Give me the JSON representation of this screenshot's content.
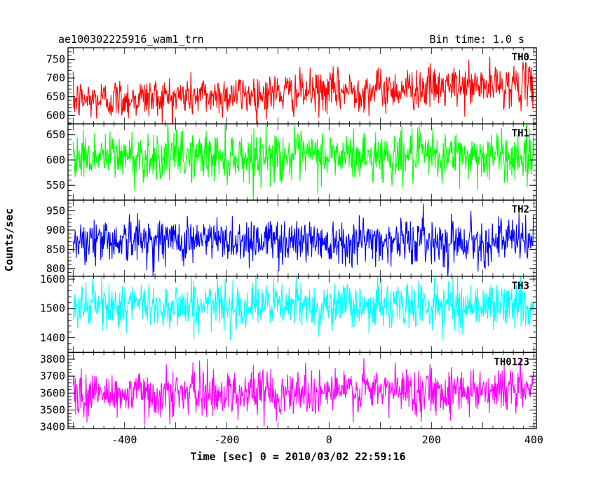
{
  "header": {
    "title": "ae100302225916_wam1_trn",
    "bin_time": "Bin time: 1.0 s"
  },
  "chart_data": {
    "type": "line",
    "xlabel": "Time [sec] 0 = 2010/03/02 22:59:16",
    "ylabel": "Counts/sec",
    "xlim": [
      -510,
      405
    ],
    "x_ticks": [
      -400,
      -200,
      0,
      200,
      400
    ],
    "x_range": [
      -500,
      400
    ],
    "bin_time": 1.0,
    "panels": [
      {
        "name": "TH0",
        "color": "#ff0000",
        "ylim": [
          577,
          781
        ],
        "y_ticks": [
          600,
          650,
          700,
          750
        ],
        "mean_start": 640,
        "mean_end": 683,
        "spread": 28
      },
      {
        "name": "TH1",
        "color": "#00ff00",
        "ylim": [
          521,
          671
        ],
        "y_ticks": [
          550,
          600,
          650
        ],
        "mean_start": 607,
        "mean_end": 607,
        "spread": 25
      },
      {
        "name": "TH2",
        "color": "#0000ff",
        "ylim": [
          780,
          978
        ],
        "y_ticks": [
          800,
          850,
          900,
          950
        ],
        "mean_start": 875,
        "mean_end": 872,
        "spread": 30
      },
      {
        "name": "TH3",
        "color": "#00ffff",
        "ylim": [
          1350,
          1610
        ],
        "y_ticks": [
          1400,
          1500,
          1600
        ],
        "mean_start": 1510,
        "mean_end": 1510,
        "spread": 40
      },
      {
        "name": "TH0123",
        "color": "#ff00ff",
        "ylim": [
          3390,
          3840
        ],
        "y_ticks": [
          3400,
          3500,
          3600,
          3700,
          3800
        ],
        "mean_start": 3590,
        "mean_end": 3625,
        "spread": 70
      }
    ]
  }
}
